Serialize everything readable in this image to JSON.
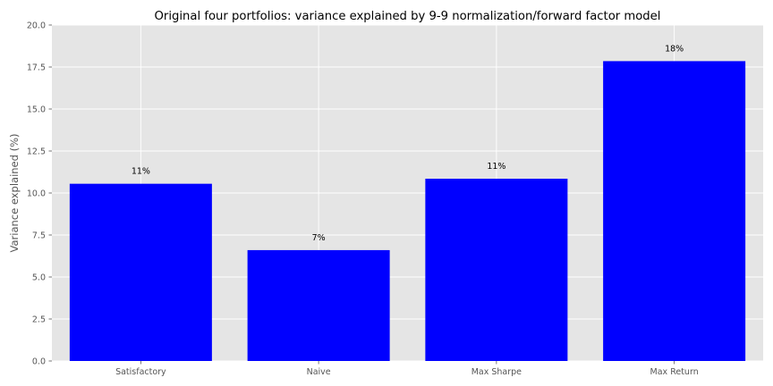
{
  "chart_data": {
    "type": "bar",
    "title": "Original four portfolios: variance explained by 9-9 normalization/forward factor model",
    "xlabel": "",
    "ylabel": "Variance explained (%)",
    "categories": [
      "Satisfactory",
      "Naive",
      "Max Sharpe",
      "Max Return"
    ],
    "values": [
      10.55,
      6.6,
      10.85,
      17.85
    ],
    "data_labels": [
      "11%",
      "7%",
      "11%",
      "18%"
    ],
    "ylim": [
      0,
      20
    ],
    "yticks": [
      "0.0",
      "2.5",
      "5.0",
      "7.5",
      "10.0",
      "12.5",
      "15.0",
      "17.5",
      "20.0"
    ],
    "grid": true,
    "bar_color": "#0000ff",
    "background_color": "#e5e5e5",
    "grid_color": "#ffffff"
  }
}
